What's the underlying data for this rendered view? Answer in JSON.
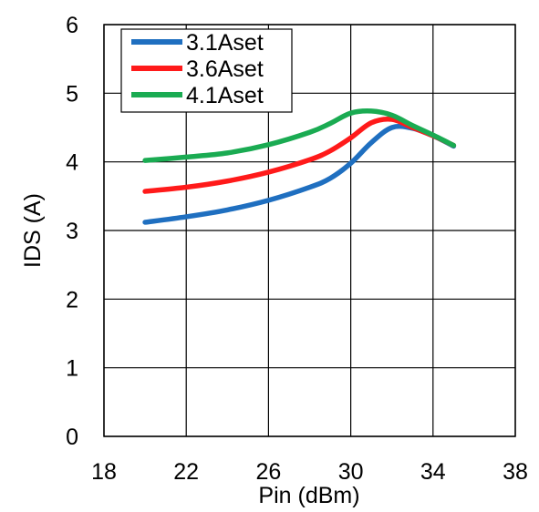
{
  "chart_data": {
    "type": "line",
    "title": "",
    "xlabel": "Pin (dBm)",
    "ylabel": "IDS (A)",
    "xlim": [
      18,
      38
    ],
    "ylim": [
      0,
      6
    ],
    "xticks": [
      18,
      22,
      26,
      30,
      34,
      38
    ],
    "yticks": [
      0,
      1,
      2,
      3,
      4,
      5,
      6
    ],
    "x_tick_labels": [
      "18",
      "22",
      "26",
      "30",
      "34",
      "38"
    ],
    "y_tick_labels": [
      "0",
      "1",
      "2",
      "3",
      "4",
      "5",
      "6"
    ],
    "grid": true,
    "legend_position": "top-left",
    "series": [
      {
        "name": "3.1Aset",
        "color": "#1f6fc0",
        "x": [
          20,
          22,
          24,
          26,
          28,
          29,
          30,
          31,
          32,
          33,
          34,
          35
        ],
        "y": [
          3.12,
          3.2,
          3.3,
          3.44,
          3.63,
          3.76,
          3.98,
          4.28,
          4.5,
          4.49,
          4.38,
          4.23
        ]
      },
      {
        "name": "3.6Aset",
        "color": "#ff1a1a",
        "x": [
          20,
          22,
          24,
          26,
          28,
          29,
          30,
          31,
          32,
          33,
          34,
          35
        ],
        "y": [
          3.57,
          3.63,
          3.72,
          3.85,
          4.03,
          4.16,
          4.35,
          4.57,
          4.62,
          4.5,
          4.38,
          4.24
        ]
      },
      {
        "name": "4.1Aset",
        "color": "#1aab52",
        "x": [
          20,
          22,
          24,
          26,
          28,
          29,
          30,
          31,
          32,
          33,
          34,
          35
        ],
        "y": [
          4.02,
          4.07,
          4.13,
          4.25,
          4.43,
          4.56,
          4.71,
          4.74,
          4.68,
          4.53,
          4.39,
          4.24
        ]
      }
    ]
  }
}
